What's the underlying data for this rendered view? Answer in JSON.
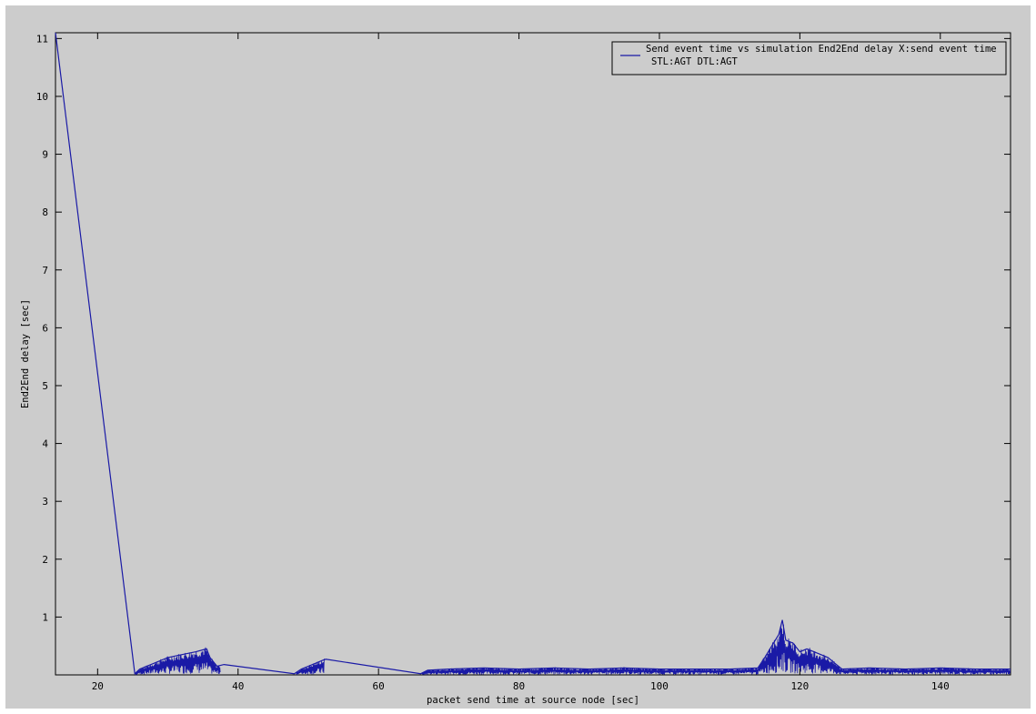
{
  "chart_data": {
    "type": "line",
    "xlabel": "packet send time at source node [sec]",
    "ylabel": "End2End delay [sec]",
    "xlim": [
      14,
      150
    ],
    "ylim": [
      0,
      11.1
    ],
    "xticks": [
      20,
      40,
      60,
      80,
      100,
      120,
      140
    ],
    "yticks": [
      1,
      2,
      3,
      4,
      5,
      6,
      7,
      8,
      9,
      10,
      11
    ],
    "grid": false,
    "legend_position": "top-right",
    "legend": [
      "Send event time vs simulation End2End delay X:send event time",
      "STL:AGT DTL:AGT"
    ],
    "series": [
      {
        "color": "#1a1aa6",
        "x": [
          14.0,
          25.3,
          26.0,
          28.0,
          30.0,
          32.0,
          34.0,
          35.5,
          36.0,
          37.0,
          38.0,
          48.0,
          49.0,
          51.0,
          52.0,
          52.5,
          66.0,
          67.0,
          70.0,
          75.0,
          80.0,
          85.0,
          90.0,
          95.0,
          100.0,
          105.0,
          110.0,
          114.0,
          115.0,
          116.0,
          117.0,
          117.5,
          118.0,
          119.0,
          120.0,
          121.0,
          122.0,
          123.0,
          124.0,
          125.0,
          126.0,
          130.0,
          135.0,
          140.0,
          145.0,
          150.0
        ],
        "y": [
          11.1,
          0.02,
          0.1,
          0.2,
          0.3,
          0.35,
          0.4,
          0.45,
          0.3,
          0.15,
          0.18,
          0.02,
          0.1,
          0.2,
          0.25,
          0.27,
          0.02,
          0.08,
          0.1,
          0.12,
          0.1,
          0.12,
          0.1,
          0.12,
          0.1,
          0.1,
          0.1,
          0.12,
          0.3,
          0.5,
          0.7,
          0.95,
          0.6,
          0.55,
          0.4,
          0.45,
          0.4,
          0.35,
          0.3,
          0.2,
          0.1,
          0.12,
          0.1,
          0.12,
          0.1,
          0.1
        ]
      }
    ]
  }
}
